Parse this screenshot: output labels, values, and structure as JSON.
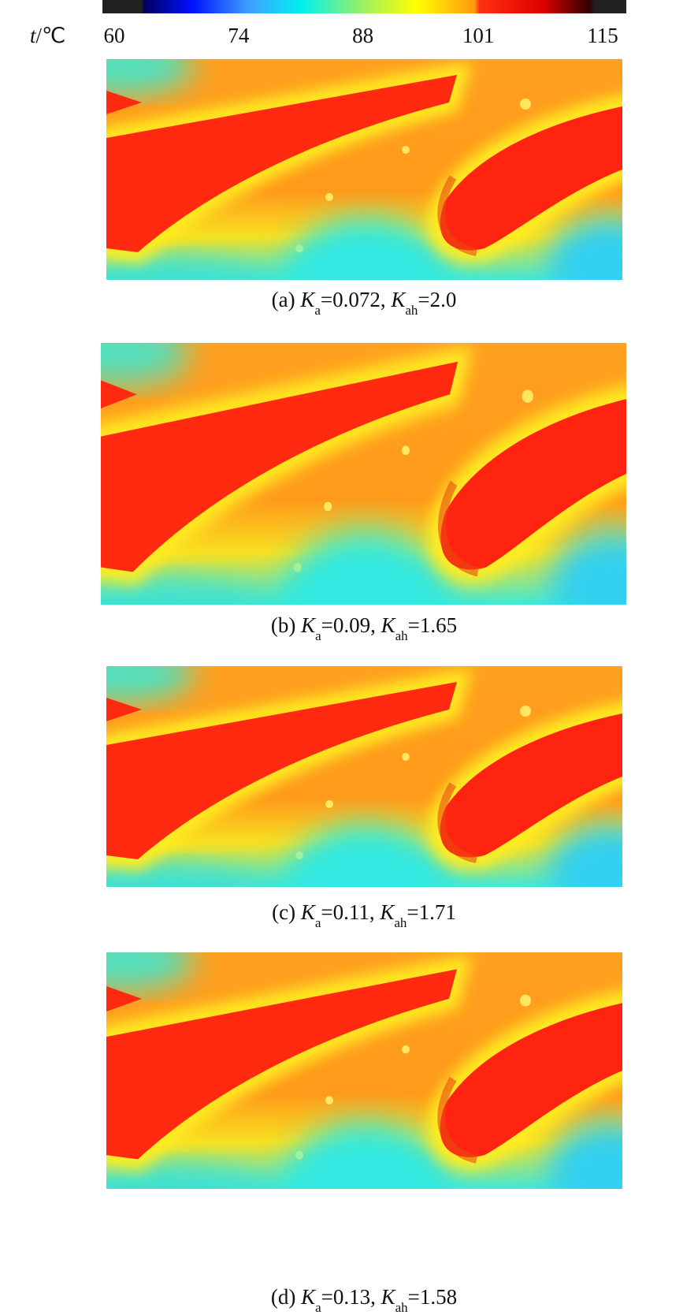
{
  "colorbar": {
    "label": [
      {
        "text": "t",
        "style": "italic"
      },
      {
        "text": "/℃"
      }
    ],
    "ticks": [
      60,
      74,
      88,
      101,
      115
    ]
  },
  "panels": [
    {
      "caption": [
        {
          "text": "(a) "
        },
        {
          "text": "K",
          "style": "italic"
        },
        {
          "text": "a",
          "style": "sub"
        },
        {
          "text": "=0.072, "
        },
        {
          "text": "K",
          "style": "italic"
        },
        {
          "text": "ah",
          "style": "sub"
        },
        {
          "text": "=2.0"
        }
      ]
    },
    {
      "caption": [
        {
          "text": "(b) "
        },
        {
          "text": "K",
          "style": "italic"
        },
        {
          "text": "a",
          "style": "sub"
        },
        {
          "text": "=0.09, "
        },
        {
          "text": "K",
          "style": "italic"
        },
        {
          "text": "ah",
          "style": "sub"
        },
        {
          "text": "=1.65"
        }
      ]
    },
    {
      "caption": [
        {
          "text": "(c) "
        },
        {
          "text": "K",
          "style": "italic"
        },
        {
          "text": "a",
          "style": "sub"
        },
        {
          "text": "=0.11, "
        },
        {
          "text": "K",
          "style": "italic"
        },
        {
          "text": "ah",
          "style": "sub"
        },
        {
          "text": "=1.71"
        }
      ]
    },
    {
      "caption": [
        {
          "text": "(d) "
        },
        {
          "text": "K",
          "style": "italic"
        },
        {
          "text": "a",
          "style": "sub"
        },
        {
          "text": "=0.13, "
        },
        {
          "text": "K",
          "style": "italic"
        },
        {
          "text": "ah",
          "style": "sub"
        },
        {
          "text": "=1.58"
        }
      ]
    }
  ]
}
